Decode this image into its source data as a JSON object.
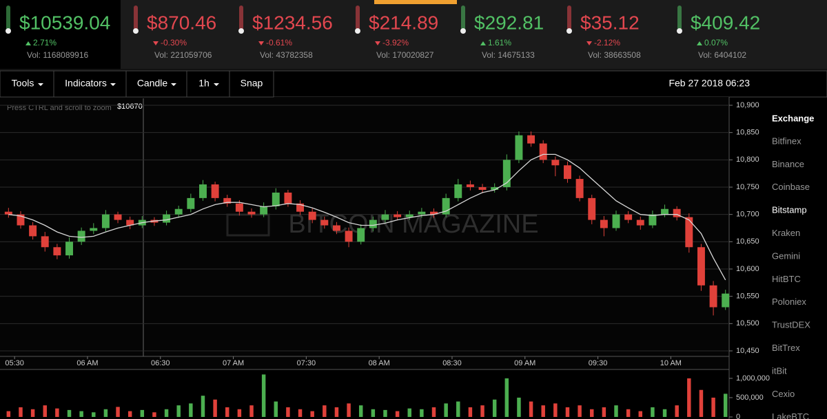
{
  "tickers": [
    {
      "price": "$10539.04",
      "change": "2.71%",
      "direction": "up",
      "volume": "Vol: 1168089916"
    },
    {
      "price": "$870.46",
      "change": "-0.30%",
      "direction": "down",
      "volume": "Vol: 221059706"
    },
    {
      "price": "$1234.56",
      "change": "-0.61%",
      "direction": "down",
      "volume": "Vol: 43782358"
    },
    {
      "price": "$214.89",
      "change": "-3.92%",
      "direction": "down",
      "volume": "Vol: 170020827"
    },
    {
      "price": "$292.81",
      "change": "1.61%",
      "direction": "up",
      "volume": "Vol: 14675133"
    },
    {
      "price": "$35.12",
      "change": "-2.12%",
      "direction": "down",
      "volume": "Vol: 38663508"
    },
    {
      "price": "$409.42",
      "change": "0.07%",
      "direction": "up",
      "volume": "Vol: 6404102"
    }
  ],
  "ticker_colors": {
    "up": "#52c165",
    "down": "#e2474f"
  },
  "selected_ticker": 0,
  "toolbar": {
    "buttons": [
      {
        "label": "Tools",
        "dropdown": true
      },
      {
        "label": "Indicators",
        "dropdown": true
      },
      {
        "label": "Candle",
        "dropdown": true
      },
      {
        "label": "1h",
        "dropdown": true
      },
      {
        "label": "Snap",
        "dropdown": false
      }
    ],
    "datetime": "Feb 27 2018 06:23"
  },
  "chart_data": {
    "type": "candlestick",
    "hint": "Press CTRL and scroll to zoom",
    "crosshair_label": "$10670",
    "watermark": "BITCOIN MAGAZINE",
    "up_color": "#4caf50",
    "down_color": "#e0413a",
    "x": [
      "05:25",
      "05:30",
      "05:35",
      "05:40",
      "05:45",
      "05:50",
      "05:55",
      "06:00",
      "06:05",
      "06:10",
      "06:15",
      "06:20",
      "06:25",
      "06:30",
      "06:35",
      "06:40",
      "06:45",
      "06:50",
      "06:55",
      "07:00",
      "07:05",
      "07:10",
      "07:15",
      "07:20",
      "07:25",
      "07:30",
      "07:35",
      "07:40",
      "07:45",
      "07:50",
      "07:55",
      "08:00",
      "08:05",
      "08:10",
      "08:15",
      "08:20",
      "08:25",
      "08:30",
      "08:35",
      "08:40",
      "08:45",
      "08:50",
      "08:55",
      "09:00",
      "09:05",
      "09:10",
      "09:15",
      "09:20",
      "09:25",
      "09:30",
      "09:35",
      "09:40",
      "09:45",
      "09:50",
      "09:55",
      "10:00",
      "10:05",
      "10:10",
      "10:15",
      "10:20"
    ],
    "open": [
      10705,
      10700,
      10680,
      10660,
      10640,
      10625,
      10650,
      10670,
      10675,
      10700,
      10690,
      10680,
      10690,
      10685,
      10700,
      10710,
      10730,
      10755,
      10730,
      10720,
      10705,
      10700,
      10715,
      10740,
      10720,
      10705,
      10690,
      10680,
      10670,
      10650,
      10675,
      10690,
      10700,
      10695,
      10700,
      10705,
      10700,
      10730,
      10755,
      10750,
      10745,
      10750,
      10800,
      10845,
      10830,
      10800,
      10790,
      10765,
      10730,
      10690,
      10675,
      10700,
      10690,
      10680,
      10700,
      10710,
      10695,
      10640,
      10570,
      10530
    ],
    "high": [
      10712,
      10706,
      10686,
      10668,
      10646,
      10658,
      10676,
      10684,
      10708,
      10705,
      10696,
      10697,
      10695,
      10707,
      10716,
      10738,
      10763,
      10760,
      10736,
      10726,
      10711,
      10722,
      10748,
      10745,
      10726,
      10711,
      10696,
      10686,
      10676,
      10682,
      10696,
      10708,
      10706,
      10707,
      10712,
      10711,
      10738,
      10765,
      10762,
      10756,
      10757,
      10810,
      10852,
      10852,
      10836,
      10806,
      10797,
      10771,
      10736,
      10697,
      10707,
      10706,
      10696,
      10707,
      10718,
      10715,
      10702,
      10646,
      10578,
      10562
    ],
    "low": [
      10694,
      10674,
      10654,
      10632,
      10618,
      10619,
      10644,
      10664,
      10669,
      10684,
      10673,
      10675,
      10679,
      10680,
      10694,
      10704,
      10725,
      10724,
      10714,
      10698,
      10694,
      10695,
      10709,
      10714,
      10699,
      10684,
      10674,
      10664,
      10640,
      10645,
      10669,
      10685,
      10689,
      10690,
      10694,
      10694,
      10695,
      10724,
      10744,
      10739,
      10740,
      10744,
      10794,
      10824,
      10794,
      10770,
      10758,
      10724,
      10682,
      10660,
      10670,
      10684,
      10672,
      10675,
      10695,
      10689,
      10630,
      10560,
      10515,
      10525
    ],
    "close": [
      10700,
      10680,
      10660,
      10640,
      10625,
      10650,
      10670,
      10675,
      10700,
      10690,
      10680,
      10690,
      10685,
      10700,
      10710,
      10730,
      10755,
      10730,
      10720,
      10705,
      10700,
      10715,
      10740,
      10720,
      10705,
      10690,
      10680,
      10670,
      10650,
      10675,
      10690,
      10700,
      10695,
      10700,
      10705,
      10700,
      10730,
      10755,
      10750,
      10745,
      10750,
      10800,
      10845,
      10830,
      10800,
      10790,
      10765,
      10730,
      10690,
      10675,
      10700,
      10690,
      10680,
      10700,
      10710,
      10695,
      10640,
      10570,
      10530,
      10555
    ],
    "ma": {
      "color": "#d8d8d8",
      "values": [
        10700,
        10697,
        10690,
        10680,
        10668,
        10660,
        10658,
        10660,
        10668,
        10675,
        10680,
        10685,
        10688,
        10690,
        10695,
        10700,
        10710,
        10718,
        10722,
        10722,
        10718,
        10714,
        10716,
        10720,
        10718,
        10712,
        10704,
        10695,
        10685,
        10680,
        10680,
        10684,
        10690,
        10694,
        10698,
        10700,
        10706,
        10718,
        10730,
        10740,
        10745,
        10758,
        10780,
        10800,
        10810,
        10810,
        10800,
        10785,
        10765,
        10745,
        10725,
        10712,
        10700,
        10698,
        10700,
        10700,
        10690,
        10665,
        10620,
        10580
      ]
    },
    "xlim": [
      "05:24",
      "10:24"
    ],
    "xticks": [
      "05:30",
      {
        "value": "06:00",
        "label": "06 AM"
      },
      "06:30",
      {
        "value": "07:00",
        "label": "07 AM"
      },
      "07:30",
      {
        "value": "08:00",
        "label": "08 AM"
      },
      "08:30",
      {
        "value": "09:00",
        "label": "09 AM"
      },
      "09:30",
      {
        "value": "10:00",
        "label": "10 AM"
      }
    ],
    "ylim": [
      10450,
      10900
    ],
    "yticks": [
      {
        "value": 10450,
        "label": "10,450"
      },
      {
        "value": 10500,
        "label": "10,500"
      },
      {
        "value": 10550,
        "label": "10,550"
      },
      {
        "value": 10600,
        "label": "10,600"
      },
      {
        "value": 10650,
        "label": "10,650"
      },
      {
        "value": 10700,
        "label": "10,700"
      },
      {
        "value": 10750,
        "label": "10,750"
      },
      {
        "value": 10800,
        "label": "10,800"
      },
      {
        "value": 10850,
        "label": "10,850"
      },
      {
        "value": 10900,
        "label": "10,900"
      }
    ],
    "grid": true,
    "volume": {
      "values": [
        150000,
        250000,
        200000,
        300000,
        220000,
        180000,
        150000,
        120000,
        200000,
        260000,
        150000,
        180000,
        120000,
        200000,
        300000,
        350000,
        550000,
        450000,
        250000,
        200000,
        300000,
        1100000,
        400000,
        250000,
        200000,
        150000,
        300000,
        250000,
        350000,
        300000,
        200000,
        180000,
        150000,
        220000,
        200000,
        250000,
        350000,
        400000,
        250000,
        300000,
        450000,
        1000000,
        500000,
        400000,
        300000,
        350000,
        250000,
        300000,
        200000,
        250000,
        300000,
        200000,
        150000,
        250000,
        200000,
        300000,
        1000000,
        700000,
        500000,
        600000
      ],
      "ylim": [
        0,
        1230000
      ],
      "yticks": [
        0,
        {
          "value": 500000,
          "label": "500,000"
        },
        {
          "value": 1000000,
          "label": "1,000,000"
        }
      ]
    }
  },
  "exchanges": {
    "title": "Exchange",
    "selected_index": 3,
    "items": [
      "Bitfinex",
      "Binance",
      "Coinbase",
      "Bitstamp",
      "Kraken",
      "Gemini",
      "HitBTC",
      "Poloniex",
      "TrustDEX",
      "BitTrex",
      "itBit",
      "Cexio",
      "LakeBTC"
    ]
  }
}
